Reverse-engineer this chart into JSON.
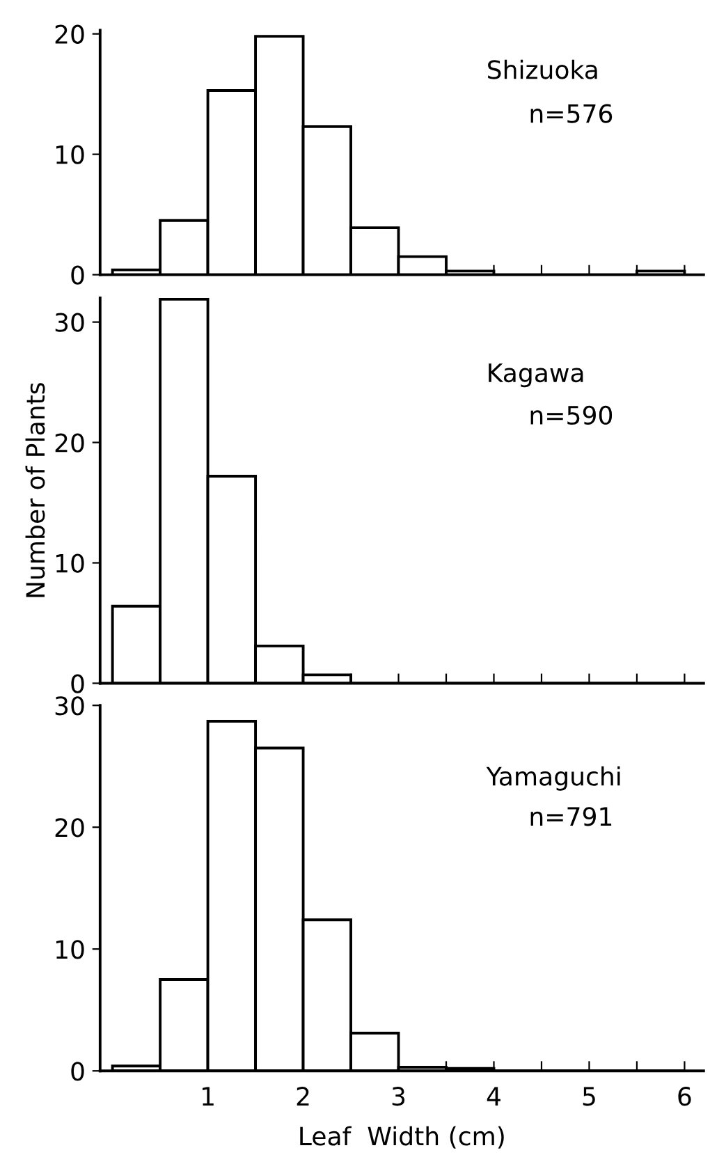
{
  "chart_data": [
    {
      "type": "histogram",
      "annotations": [
        "Shizuoka",
        "n=576"
      ],
      "bins": [
        0,
        0.5,
        1,
        1.5,
        2,
        2.5,
        3,
        3.5,
        4,
        4.5,
        5,
        5.5,
        6
      ],
      "values": [
        0.4,
        4.5,
        15.3,
        19.8,
        12.3,
        3.9,
        1.5,
        0.3,
        0,
        0,
        0,
        0.3
      ],
      "color": "#ffffff",
      "xlim": [
        -0.13,
        6.2
      ],
      "xticks": [
        {
          "value": 0.5,
          "label": null
        },
        1,
        {
          "value": 1.5,
          "label": null
        },
        2,
        {
          "value": 2.5,
          "label": null
        },
        3,
        {
          "value": 3.5,
          "label": null
        },
        4,
        {
          "value": 4.5,
          "label": null
        },
        5,
        {
          "value": 5.5,
          "label": null
        },
        6
      ],
      "ylim": [
        0,
        20.3
      ],
      "yticks": [
        0,
        10,
        20
      ],
      "tick_labels": "y"
    },
    {
      "type": "histogram",
      "annotations": [
        "Kagawa",
        "n=590"
      ],
      "ylabel": "Number of Plants",
      "bins": [
        0,
        0.5,
        1,
        1.5,
        2,
        2.5,
        3,
        3.5,
        4,
        4.5,
        5,
        5.5,
        6
      ],
      "values": [
        6.4,
        31.9,
        17.2,
        3.1,
        0.7,
        0,
        0,
        0,
        0,
        0,
        0,
        0
      ],
      "color": "#ffffff",
      "xlim": [
        -0.13,
        6.2
      ],
      "xticks": [
        {
          "value": 0.5,
          "label": null
        },
        1,
        {
          "value": 1.5,
          "label": null
        },
        2,
        {
          "value": 2.5,
          "label": null
        },
        3,
        {
          "value": 3.5,
          "label": null
        },
        4,
        {
          "value": 4.5,
          "label": null
        },
        5,
        {
          "value": 5.5,
          "label": null
        },
        6
      ],
      "ylim": [
        0,
        32
      ],
      "yticks": [
        0,
        10,
        20,
        30
      ],
      "tick_labels": "y"
    },
    {
      "type": "histogram",
      "annotations": [
        "Yamaguchi",
        "n=791"
      ],
      "xlabel": "Leaf  Width (cm)",
      "bins": [
        0,
        0.5,
        1,
        1.5,
        2,
        2.5,
        3,
        3.5,
        4,
        4.5,
        5,
        5.5,
        6
      ],
      "values": [
        0.4,
        7.5,
        28.7,
        26.5,
        12.4,
        3.1,
        0.3,
        0.2,
        0,
        0,
        0,
        0
      ],
      "color": "#ffffff",
      "xlim": [
        -0.13,
        6.2
      ],
      "xticks": [
        {
          "value": 0.5,
          "label": null
        },
        1,
        {
          "value": 1.5,
          "label": null
        },
        2,
        {
          "value": 2.5,
          "label": null
        },
        3,
        {
          "value": 3.5,
          "label": null
        },
        4,
        {
          "value": 4.5,
          "label": null
        },
        5,
        {
          "value": 5.5,
          "label": null
        },
        6
      ],
      "ylim": [
        0,
        30
      ],
      "yticks": [
        0,
        10,
        20,
        30
      ]
    }
  ]
}
